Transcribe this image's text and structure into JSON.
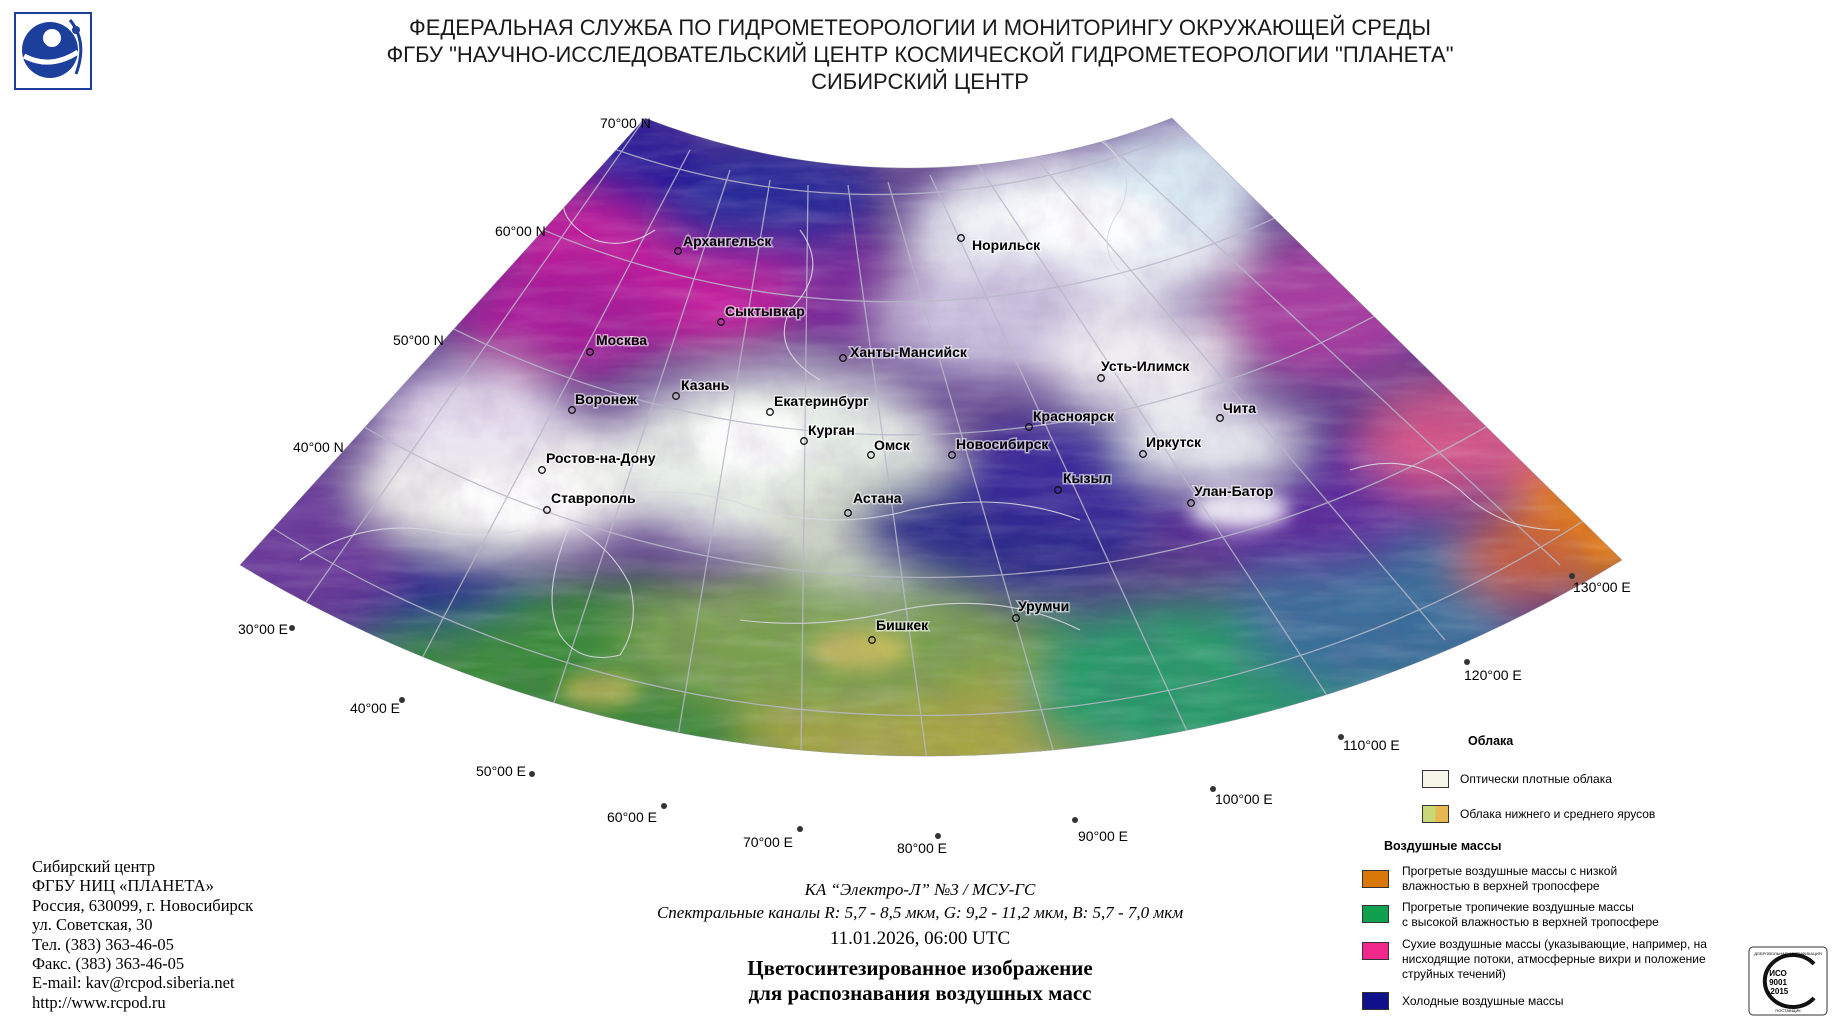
{
  "header": {
    "line1": "ФЕДЕРАЛЬНАЯ СЛУЖБА ПО ГИДРОМЕТЕОРОЛОГИИ И МОНИТОРИНГУ ОКРУЖАЮЩЕЙ СРЕДЫ",
    "line2": "ФГБУ \"НАУЧНО-ИССЛЕДОВАТЕЛЬСКИЙ ЦЕНТР КОСМИЧЕСКОЙ ГИДРОМЕТЕОРОЛОГИИ \"ПЛАНЕТА\"",
    "line3": "СИБИРСКИЙ ЦЕНТР"
  },
  "map": {
    "latitude_labels": [
      "70°00 N",
      "60°00 N",
      "50°00 N",
      "40°00 N"
    ],
    "longitude_labels": [
      "30°00 E",
      "40°00 E",
      "50°00 E",
      "60°00 E",
      "70°00 E",
      "80°00 E",
      "90°00 E",
      "100°00 E",
      "110°00 E",
      "120°00 E",
      "130°00 E"
    ],
    "cities": [
      "Архангельск",
      "Норильск",
      "Сыктывкар",
      "Москва",
      "Ханты-Мансийск",
      "Усть-Илимск",
      "Казань",
      "Воронеж",
      "Екатеринбург",
      "Красноярск",
      "Чита",
      "Курган",
      "Омск",
      "Новосибирск",
      "Иркутск",
      "Ростов-на-Дону",
      "Кызыл",
      "Улан-Батор",
      "Ставрополь",
      "Астана",
      "Урумчи",
      "Бишкек"
    ]
  },
  "org_block": {
    "line1": "Сибирский центр",
    "line2": "ФГБУ НИЦ «ПЛАНЕТА»",
    "line3": "Россия, 630099, г. Новосибирск",
    "line4": "ул. Советская, 30",
    "line5": "Тел. (383) 363-46-05",
    "line6": "Факс. (383) 363-46-05",
    "line7": "E-mail: kav@rcpod.siberia.net",
    "line8": "http://www.rcpod.ru"
  },
  "caption": {
    "satellite": "КА “Электро-Л” №3 / МСУ-ГС",
    "channels": "Спектральные каналы R: 5,7 - 8,5 мкм, G: 9,2 - 11,2 мкм, B: 5,7 - 7,0 мкм",
    "datetime": "11.01.2026, 06:00 UTC",
    "title_line1": "Цветосинтезированное изображение",
    "title_line2": "для распознавания воздушных масс"
  },
  "legend": {
    "clouds_heading": "Облака",
    "clouds_items": [
      {
        "label": "Оптически плотные облака",
        "color": "#f4f4e8"
      },
      {
        "label": "Облака нижнего и среднего ярусов",
        "colors": [
          "#c8d878",
          "#e8b850"
        ]
      }
    ],
    "airmass_heading": "Воздушные массы",
    "airmass_items": [
      {
        "label_line1": "Прогретые воздушные массы с низкой",
        "label_line2": "влажностью в верхней тропосфере",
        "color": "#d8780a"
      },
      {
        "label_line1": "Прогретые тропичекие воздушные массы",
        "label_line2": "с высокой влажностью в верхней тропосфере",
        "color": "#10a050"
      },
      {
        "label_line1": "Сухие воздушные массы (указывающие, например, на",
        "label_line2": "нисходящие потоки, атмосферные вихри и положение",
        "label_line3": "струйных течений)",
        "color": "#f0288c"
      },
      {
        "label_line1": "Холодные воздушные массы",
        "color": "#10108c"
      }
    ]
  },
  "iso_badge": {
    "line1": "ИСО",
    "line2": "9001",
    "line3": "-2015",
    "ring_top": "ДОБРОВОЛЬНАЯ СЕРТИФИКАЦИЯ",
    "ring_bottom": "ПОСТАВЩИК"
  },
  "colors": {
    "cold_airmass": "#1e1e9c",
    "dry_airmass": "#c8209a",
    "tropical_moist": "#2c9a4a",
    "warm_dry": "#d8780a",
    "dense_cloud": "#f2f2ea"
  }
}
